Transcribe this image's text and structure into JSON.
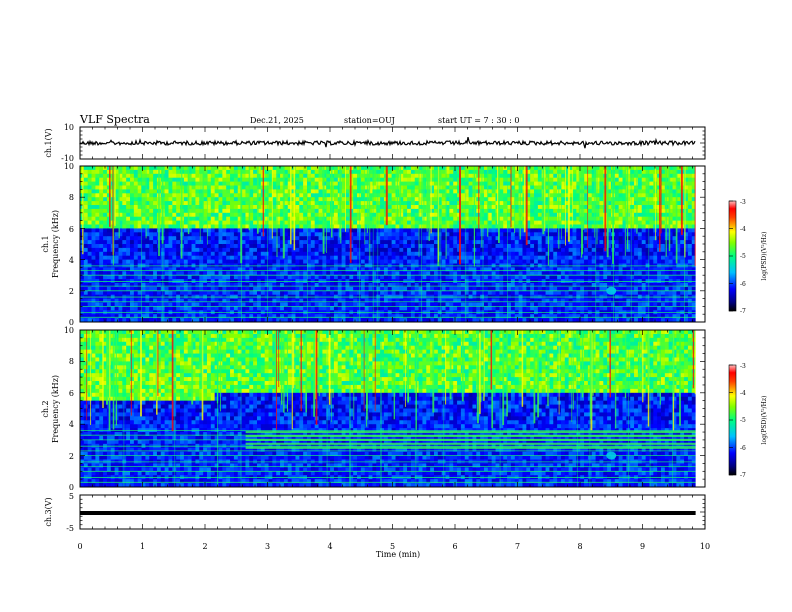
{
  "header": {
    "title": "VLF Spectra",
    "date": "Dec.21, 2025",
    "station": "station=OUJ",
    "start": "start UT =  7 : 30 : 0"
  },
  "chart_data": [
    {
      "type": "line",
      "panel": "ch1-waveform",
      "ylabel": "ch.1(V)",
      "ylim": [
        -10,
        10
      ],
      "yticks": [
        "10",
        "-10"
      ],
      "xlim": [
        0,
        10
      ],
      "series": [
        {
          "values_description_level": 0,
          "x": [
            0,
            10
          ],
          "y": [
            0,
            0
          ]
        }
      ]
    },
    {
      "type": "heatmap",
      "panel": "ch1-spectrogram",
      "ylabel_lines": [
        "ch.1",
        "Frequency (kHz)"
      ],
      "ylim": [
        0,
        10
      ],
      "yticks": [
        "0",
        "2",
        "4",
        "6",
        "8",
        "10"
      ],
      "xlim": [
        0,
        10
      ],
      "colorbar": {
        "label": "log(PSD)(V²/Hz)",
        "range": [
          -7,
          -3
        ],
        "ticks": [
          "-3",
          "-4",
          "-5",
          "-6",
          "-7"
        ]
      },
      "hum_lines_khz": [
        0.3,
        0.6,
        1.0,
        1.3,
        1.6,
        2.0,
        2.3,
        2.6,
        3.0,
        3.3,
        3.6
      ],
      "noise_floor_khz": 6.0,
      "event": {
        "t_min": 8.5,
        "freq_khz": 2.0
      }
    },
    {
      "type": "heatmap",
      "panel": "ch2-spectrogram",
      "ylabel_lines": [
        "ch.2",
        "Frequency (kHz)"
      ],
      "ylim": [
        0,
        10
      ],
      "yticks": [
        "0",
        "2",
        "4",
        "6",
        "8",
        "10"
      ],
      "xlim": [
        0,
        10
      ],
      "colorbar": {
        "label": "log(PSD)(V²/Hz)",
        "range": [
          -7,
          -3
        ],
        "ticks": [
          "-3",
          "-4",
          "-5",
          "-6",
          "-7"
        ]
      },
      "band": {
        "t_start_min": 2.65,
        "t_end_min": 10,
        "freq_low_khz": 2.5,
        "freq_high_khz": 3.5
      },
      "noise_floor_khz": 6.0
    },
    {
      "type": "line",
      "panel": "ch3-waveform",
      "ylabel": "ch.3(V)",
      "ylim": [
        -5,
        5
      ],
      "yticks": [
        "5",
        "-5"
      ],
      "xlim": [
        0,
        10
      ],
      "series": [
        {
          "x": [
            0,
            10
          ],
          "y": [
            -0.3,
            -0.3
          ]
        }
      ]
    }
  ],
  "xaxis": {
    "label": "Time (min)",
    "ticks": [
      "0",
      "1",
      "2",
      "3",
      "4",
      "5",
      "6",
      "7",
      "8",
      "9",
      "10"
    ]
  },
  "data_end_min": 9.85
}
